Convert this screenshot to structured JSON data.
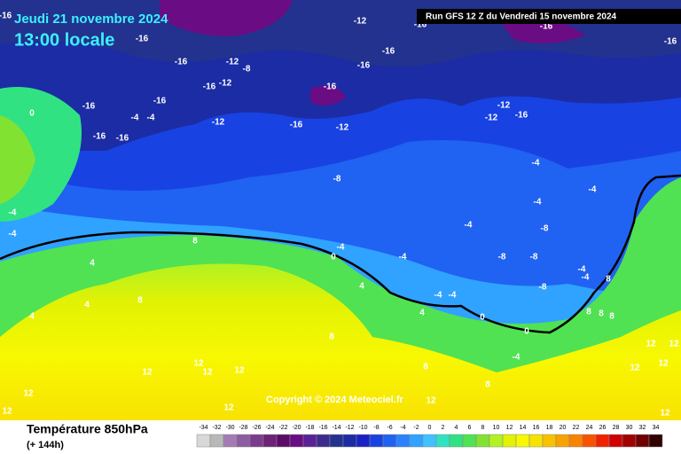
{
  "header": {
    "date": "Jeudi 21 novembre 2024",
    "time": "13:00 locale",
    "run": "Run GFS 12 Z du Vendredi 15 novembre 2024"
  },
  "copyright": "Copyright © 2024 Meteociel.fr",
  "footer": {
    "title": "Température 850hPa",
    "lead": "(+ 144h)"
  },
  "scale": {
    "ticks": [
      -34,
      -32,
      -30,
      -28,
      -26,
      -24,
      -22,
      -20,
      -18,
      -16,
      -14,
      -12,
      -10,
      -8,
      -6,
      -4,
      -2,
      0,
      2,
      4,
      6,
      8,
      10,
      12,
      14,
      16,
      18,
      20,
      22,
      24,
      26,
      28,
      30,
      32,
      34
    ],
    "colors": [
      "#d8d8d8",
      "#b8b8b8",
      "#a47cb4",
      "#8e5ca0",
      "#7c3c8c",
      "#6c2276",
      "#5c0c66",
      "#6a0c84",
      "#5a2296",
      "#3c2c8e",
      "#22328e",
      "#1c2ca4",
      "#1a22c4",
      "#1842e2",
      "#2062f2",
      "#2a82ff",
      "#30a2ff",
      "#40c2ff",
      "#30e2c2",
      "#30e282",
      "#50e252",
      "#82e232",
      "#b2f222",
      "#e2f202",
      "#f8f802",
      "#f8e202",
      "#f8c202",
      "#f8a202",
      "#f88202",
      "#f85202",
      "#f02202",
      "#d00202",
      "#a00202",
      "#700202",
      "#300202"
    ]
  },
  "contour_labels": [
    -16,
    -16,
    -12,
    -16,
    -16,
    -16,
    -12,
    -8,
    -16,
    -16,
    -16,
    -12,
    -16,
    -16,
    -16,
    -4,
    -4,
    -16,
    -12,
    -16,
    -12,
    -12,
    -16,
    -12,
    -16,
    -16,
    0,
    -8,
    -4,
    -4,
    -4,
    -4,
    -4,
    -4,
    -8,
    -4,
    0,
    -4,
    -8,
    -8,
    -4,
    -4,
    8,
    4,
    4,
    8,
    4,
    8,
    4,
    -4,
    -4,
    -8,
    4,
    0,
    8,
    0,
    8,
    8,
    -4,
    8,
    12,
    12,
    12,
    12,
    12,
    12,
    8,
    12,
    8,
    12,
    12,
    12,
    12,
    12,
    12
  ]
}
